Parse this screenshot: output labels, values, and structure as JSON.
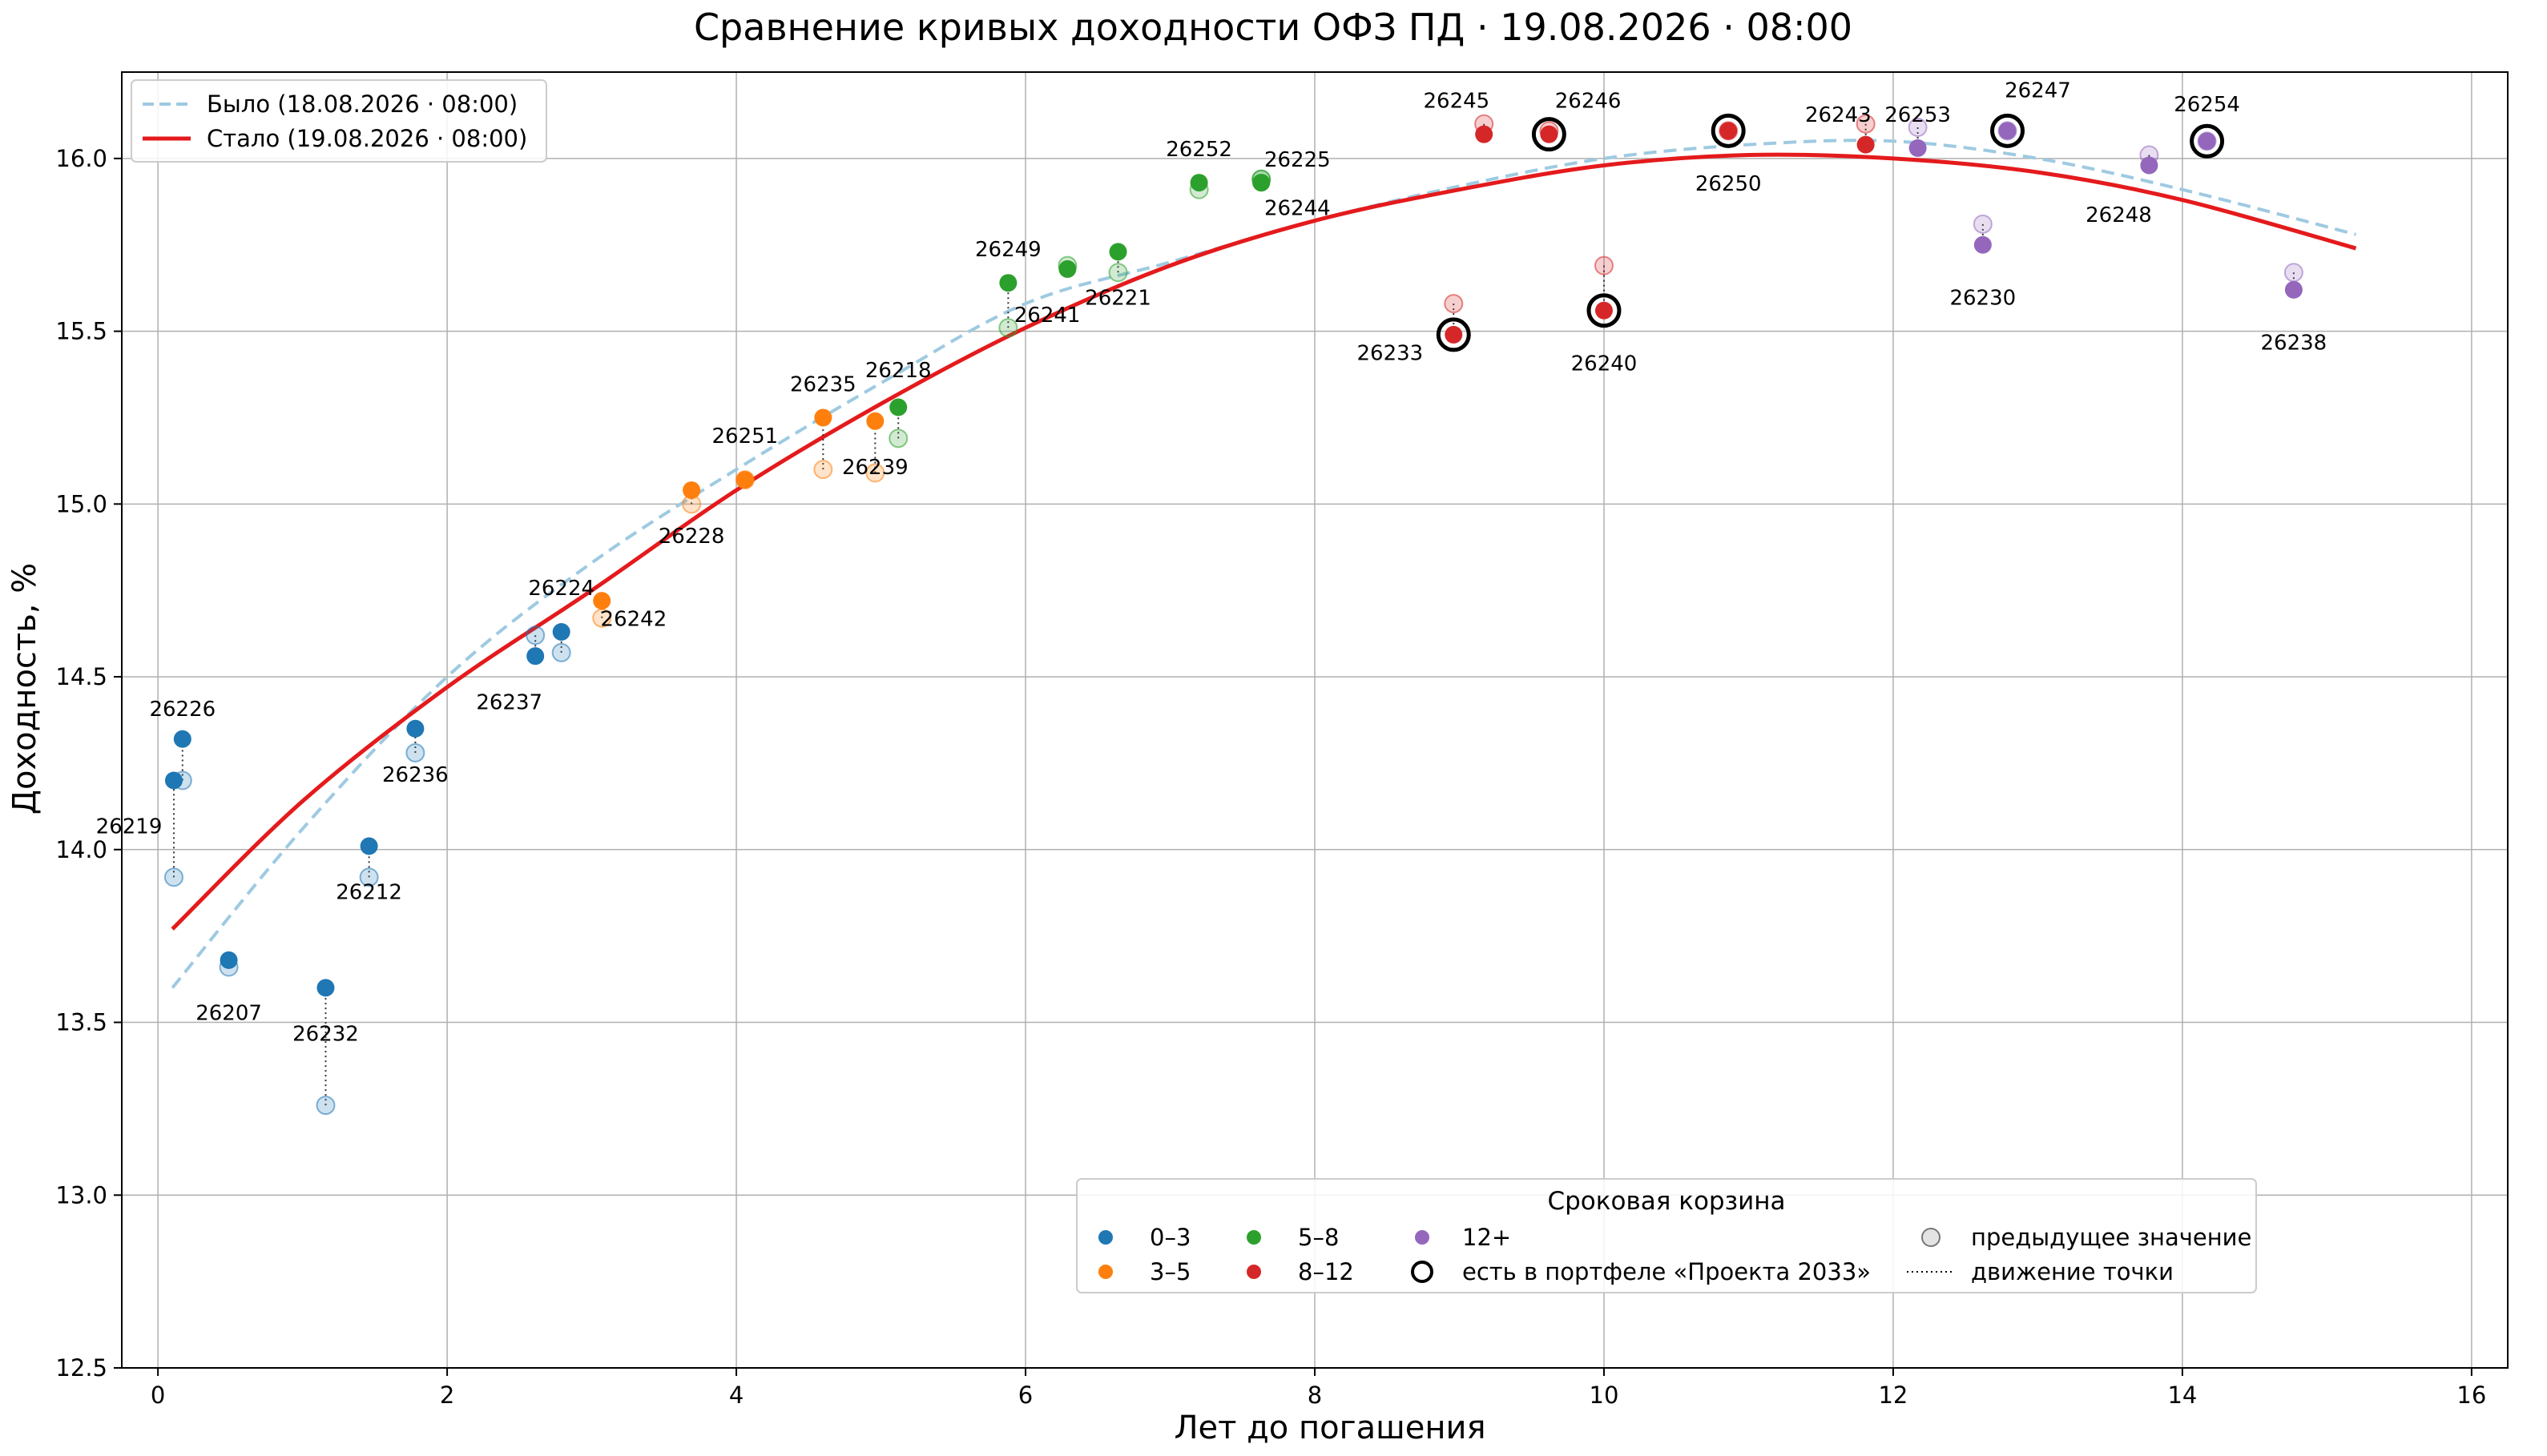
{
  "chart_data": {
    "type": "scatter",
    "title": "Сравнение кривых доходности ОФЗ ПД · 19.08.2026 · 08:00",
    "xlabel": "Лет до погашения",
    "ylabel": "Доходность, %",
    "xlim": [
      -0.25,
      16.25
    ],
    "ylim": [
      12.5,
      16.25
    ],
    "xticks": [
      0,
      2,
      4,
      6,
      8,
      10,
      12,
      14,
      16
    ],
    "yticks": [
      12.5,
      13.0,
      13.5,
      14.0,
      14.5,
      15.0,
      15.5,
      16.0
    ],
    "grid": true,
    "curves": [
      {
        "name": "Было (18.08.2026 · 08:00)",
        "style": "dashed",
        "color": "#9ecae1",
        "x": [
          0.1,
          1,
          2,
          3,
          4,
          5,
          6,
          7,
          8,
          9,
          10,
          11,
          12,
          13,
          14,
          15.2
        ],
        "y": [
          13.6,
          14.06,
          14.5,
          14.83,
          15.1,
          15.35,
          15.58,
          15.7,
          15.82,
          15.92,
          16.0,
          16.04,
          16.05,
          16.0,
          15.91,
          15.78
        ]
      },
      {
        "name": "Стало (19.08.2026 · 08:00)",
        "style": "solid",
        "color": "#e41a1c",
        "x": [
          0.1,
          1,
          2,
          3,
          4,
          5,
          6,
          7,
          8,
          9,
          10,
          11,
          12,
          13,
          14,
          15.2
        ],
        "y": [
          13.77,
          14.14,
          14.47,
          14.75,
          15.04,
          15.29,
          15.51,
          15.69,
          15.82,
          15.91,
          15.98,
          16.01,
          16.0,
          15.96,
          15.88,
          15.74
        ]
      }
    ],
    "bucket_colors": {
      "0–3": "#1f77b4",
      "3–5": "#ff7f0e",
      "5–8": "#2ca02c",
      "8–12": "#d62728",
      "12+": "#9467bd"
    },
    "points": [
      {
        "label": "26219",
        "x": 0.11,
        "y": 14.2,
        "prev": 13.92,
        "bucket": "0–3",
        "portfolio": false,
        "lx": -0.2,
        "ly": 14.07
      },
      {
        "label": "26226",
        "x": 0.17,
        "y": 14.32,
        "prev": 14.2,
        "bucket": "0–3",
        "portfolio": false,
        "lx": 0.17,
        "ly": 14.41
      },
      {
        "label": "26207",
        "x": 0.49,
        "y": 13.68,
        "prev": 13.66,
        "bucket": "0–3",
        "portfolio": false,
        "lx": 0.49,
        "ly": 13.53
      },
      {
        "label": "26232",
        "x": 1.16,
        "y": 13.6,
        "prev": 13.26,
        "bucket": "0–3",
        "portfolio": false,
        "lx": 1.16,
        "ly": 13.47
      },
      {
        "label": "26212",
        "x": 1.46,
        "y": 14.01,
        "prev": 13.92,
        "bucket": "0–3",
        "portfolio": false,
        "lx": 1.46,
        "ly": 13.88
      },
      {
        "label": "26236",
        "x": 1.78,
        "y": 14.35,
        "prev": 14.28,
        "bucket": "0–3",
        "portfolio": false,
        "lx": 1.78,
        "ly": 14.22
      },
      {
        "label": "26237",
        "x": 2.61,
        "y": 14.56,
        "prev": 14.62,
        "bucket": "0–3",
        "portfolio": false,
        "lx": 2.43,
        "ly": 14.43
      },
      {
        "label": "26224",
        "x": 2.79,
        "y": 14.63,
        "prev": 14.57,
        "bucket": "0–3",
        "portfolio": false,
        "lx": 2.79,
        "ly": 14.76
      },
      {
        "label": "26242",
        "x": 3.07,
        "y": 14.72,
        "prev": 14.67,
        "bucket": "3–5",
        "portfolio": false,
        "lx": 3.29,
        "ly": 14.67
      },
      {
        "label": "26228",
        "x": 3.69,
        "y": 15.04,
        "prev": 15.0,
        "bucket": "3–5",
        "portfolio": false,
        "lx": 3.69,
        "ly": 14.91
      },
      {
        "label": "26251",
        "x": 4.06,
        "y": 15.07,
        "prev": 15.07,
        "bucket": "3–5",
        "portfolio": false,
        "lx": 4.06,
        "ly": 15.2
      },
      {
        "label": "26235",
        "x": 4.6,
        "y": 15.25,
        "prev": 15.1,
        "bucket": "3–5",
        "portfolio": false,
        "lx": 4.6,
        "ly": 15.35
      },
      {
        "label": "26239",
        "x": 4.96,
        "y": 15.24,
        "prev": 15.09,
        "bucket": "3–5",
        "portfolio": false,
        "lx": 4.96,
        "ly": 15.11
      },
      {
        "label": "26218",
        "x": 5.12,
        "y": 15.28,
        "prev": 15.19,
        "bucket": "5–8",
        "portfolio": false,
        "lx": 5.12,
        "ly": 15.39
      },
      {
        "label": "26249",
        "x": 5.88,
        "y": 15.64,
        "prev": 15.51,
        "bucket": "5–8",
        "portfolio": false,
        "lx": 5.88,
        "ly": 15.74
      },
      {
        "label": "26241",
        "x": 6.29,
        "y": 15.68,
        "prev": 15.69,
        "bucket": "5–8",
        "portfolio": false,
        "lx": 6.15,
        "ly": 15.55
      },
      {
        "label": "26221",
        "x": 6.64,
        "y": 15.73,
        "prev": 15.67,
        "bucket": "5–8",
        "portfolio": false,
        "lx": 6.64,
        "ly": 15.6
      },
      {
        "label": "26252",
        "x": 7.2,
        "y": 15.93,
        "prev": 15.91,
        "bucket": "5–8",
        "portfolio": false,
        "lx": 7.2,
        "ly": 16.03
      },
      {
        "label": "26225",
        "x": 7.63,
        "y": 15.93,
        "prev": 15.94,
        "bucket": "5–8",
        "portfolio": false,
        "lx": 7.88,
        "ly": 16.0
      },
      {
        "label": "26244",
        "x": 7.63,
        "y": 15.93,
        "prev": 15.94,
        "bucket": "5–8",
        "portfolio": false,
        "lx": 7.88,
        "ly": 15.86
      },
      {
        "label": "26233",
        "x": 8.96,
        "y": 15.49,
        "prev": 15.58,
        "bucket": "8–12",
        "portfolio": true,
        "lx": 8.52,
        "ly": 15.44
      },
      {
        "label": "26245",
        "x": 9.17,
        "y": 16.07,
        "prev": 16.1,
        "bucket": "8–12",
        "portfolio": false,
        "lx": 8.98,
        "ly": 16.17
      },
      {
        "label": "26246",
        "x": 9.62,
        "y": 16.07,
        "prev": 16.08,
        "bucket": "8–12",
        "portfolio": true,
        "lx": 9.89,
        "ly": 16.17
      },
      {
        "label": "26240",
        "x": 10.0,
        "y": 15.56,
        "prev": 15.69,
        "bucket": "8–12",
        "portfolio": true,
        "lx": 10.0,
        "ly": 15.41
      },
      {
        "label": "26250",
        "x": 10.86,
        "y": 16.08,
        "prev": 16.08,
        "bucket": "8–12",
        "portfolio": true,
        "lx": 10.86,
        "ly": 15.93
      },
      {
        "label": "26243",
        "x": 11.81,
        "y": 16.04,
        "prev": 16.1,
        "bucket": "8–12",
        "portfolio": false,
        "lx": 11.62,
        "ly": 16.13
      },
      {
        "label": "26253",
        "x": 12.17,
        "y": 16.03,
        "prev": 16.09,
        "bucket": "12+",
        "portfolio": false,
        "lx": 12.17,
        "ly": 16.13
      },
      {
        "label": "26230",
        "x": 12.62,
        "y": 15.75,
        "prev": 15.81,
        "bucket": "12+",
        "portfolio": false,
        "lx": 12.62,
        "ly": 15.6
      },
      {
        "label": "26247",
        "x": 12.79,
        "y": 16.08,
        "prev": 16.08,
        "bucket": "12+",
        "portfolio": true,
        "lx": 13.0,
        "ly": 16.2
      },
      {
        "label": "26248",
        "x": 13.77,
        "y": 15.98,
        "prev": 16.01,
        "bucket": "12+",
        "portfolio": false,
        "lx": 13.56,
        "ly": 15.84
      },
      {
        "label": "26254",
        "x": 14.17,
        "y": 16.05,
        "prev": 16.05,
        "bucket": "12+",
        "portfolio": true,
        "lx": 14.17,
        "ly": 16.16
      },
      {
        "label": "26238",
        "x": 14.77,
        "y": 15.62,
        "prev": 15.67,
        "bucket": "12+",
        "portfolio": false,
        "lx": 14.77,
        "ly": 15.47
      }
    ],
    "legend_curves": {
      "placement": "top-left",
      "entries": [
        "Было (18.08.2026 · 08:00)",
        "Стало (19.08.2026 · 08:00)"
      ]
    },
    "legend_buckets": {
      "placement": "bottom-right",
      "title": "Сроковая корзина",
      "entries": [
        "0–3",
        "3–5",
        "5–8",
        "8–12",
        "12+"
      ],
      "portfolio_label": "есть в портфеле «Проекта 2033»",
      "prev_label": "предыдущее значение",
      "move_label": "движение точки"
    }
  }
}
